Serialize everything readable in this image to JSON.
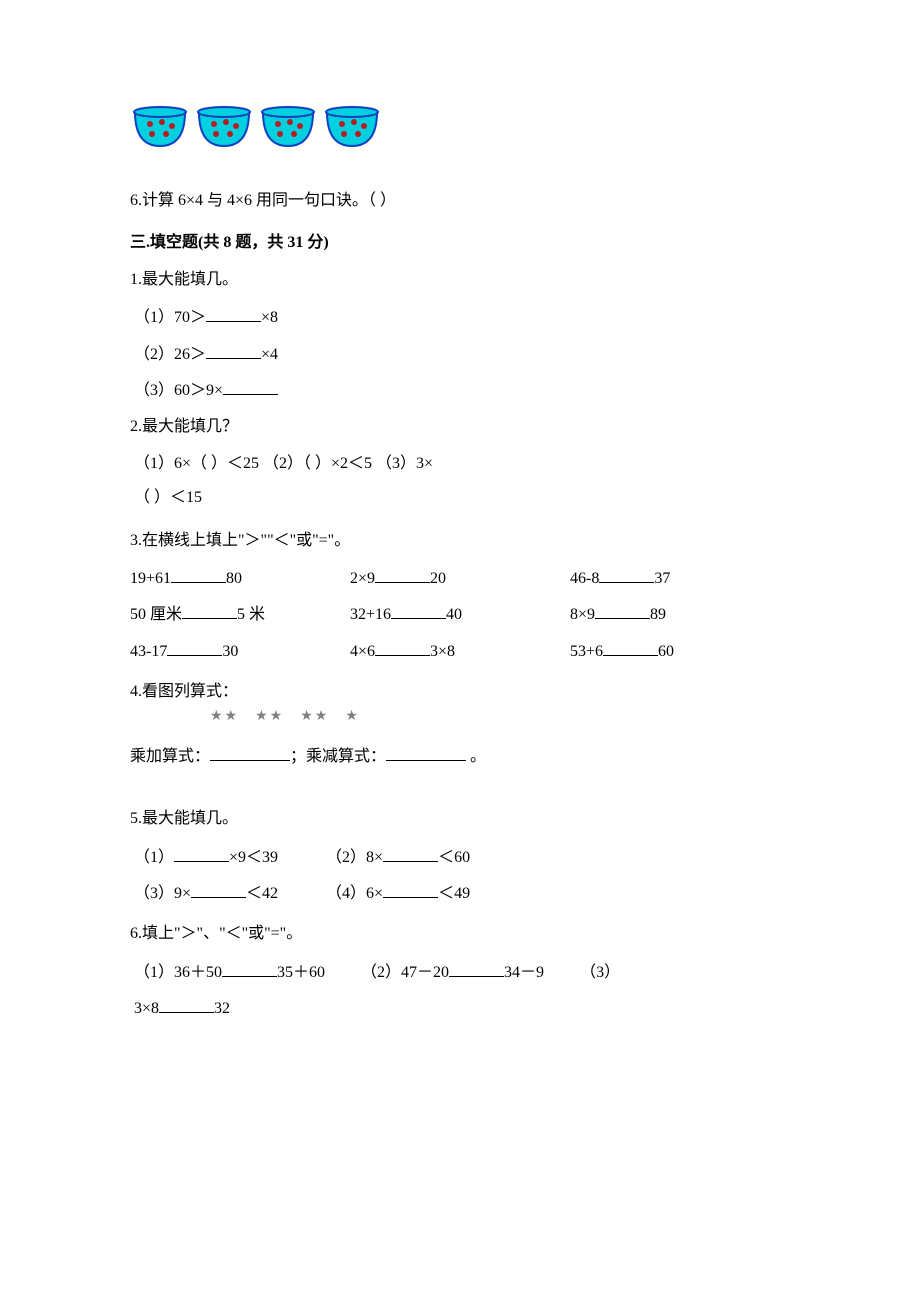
{
  "fishbowls": {
    "count": 4,
    "body_color": "#00d0e0",
    "rim_color": "#1040c0",
    "fish_color": "#b02020"
  },
  "q6_judge": "6.计算 6×4 与 4×6 用同一句口诀。（    ）",
  "section3_title": "三.填空题(共 8 题，共 31 分)",
  "q1": {
    "title": "1.最大能填几。",
    "s1_pre": "（1）70＞",
    "s1_post": "×8",
    "s2_pre": "（2）26＞",
    "s2_post": "×4",
    "s3_pre": "（3）60＞9×",
    "s3_post": ""
  },
  "q2": {
    "title": "2.最大能填几？",
    "line1": "（1）6×（     ）＜25       （2）（     ）×2＜5       （3）3×",
    "line2": "（     ）＜15"
  },
  "q3": {
    "title": "3.在横线上填上\"＞\"\"＜\"或\"=\"。",
    "rows": [
      [
        {
          "left": "19+61",
          "right": "80"
        },
        {
          "left": "2×9",
          "right": "20"
        },
        {
          "left": "46-8",
          "right": "37"
        }
      ],
      [
        {
          "left": "50 厘米",
          "right": "5 米"
        },
        {
          "left": "32+16",
          "right": "40"
        },
        {
          "left": "8×9",
          "right": "89"
        }
      ],
      [
        {
          "left": "43-17",
          "right": "30"
        },
        {
          "left": "4×6",
          "right": "3×8"
        },
        {
          "left": "53+6",
          "right": "60"
        }
      ]
    ]
  },
  "q4": {
    "title": "4.看图列算式：",
    "stars": [
      "★★",
      "★★",
      "★★",
      "★"
    ],
    "line_a_pre": "乘加算式：",
    "line_a_mid": "；乘减算式：",
    "line_a_post": "  。"
  },
  "q5": {
    "title": "5.最大能填几。",
    "s1_pre": "（1）",
    "s1_post": "×9＜39",
    "s2_pre": "（2）8×",
    "s2_post": "＜60",
    "s3_pre": "（3）9×",
    "s3_post": "＜42",
    "s4_pre": "（4）6×",
    "s4_post": "＜49"
  },
  "q6": {
    "title": "6.填上\"＞\"、\"＜\"或\"=\"。",
    "p1_pre": "（1）36＋50",
    "p1_post": "35＋60",
    "p2_pre": "（2）47－20",
    "p2_post": "34－9",
    "p3_pre": "（3）",
    "p3_mid": "3×8",
    "p3_post": "32"
  }
}
